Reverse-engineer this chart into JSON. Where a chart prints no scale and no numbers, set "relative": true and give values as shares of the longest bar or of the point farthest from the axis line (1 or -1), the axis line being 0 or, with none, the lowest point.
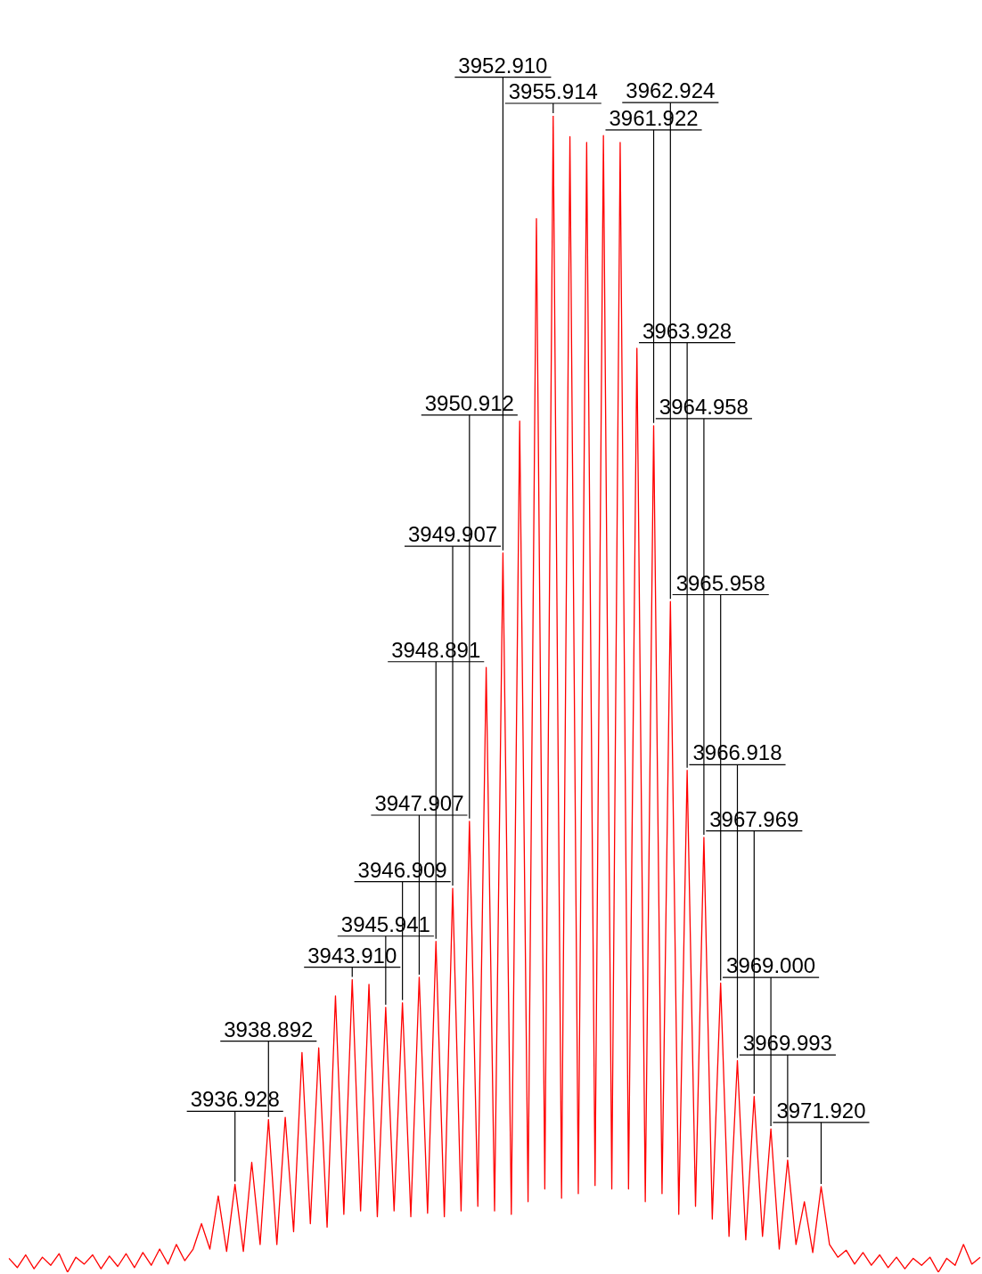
{
  "chart_data": {
    "type": "line",
    "color": "#ff0000",
    "relative": true,
    "marker": "none",
    "categories": [
      null,
      null,
      null,
      null,
      null,
      null,
      null,
      null,
      null,
      null,
      null,
      null,
      null,
      null,
      null,
      null,
      null,
      null,
      null,
      null,
      null,
      null,
      null,
      null,
      null,
      null,
      null,
      null,
      null,
      null,
      null,
      null,
      null,
      null,
      null,
      null,
      null,
      null,
      null,
      null,
      null,
      null,
      null,
      null,
      null,
      null,
      null,
      null,
      null,
      null,
      null,
      null,
      null,
      null,
      null,
      null,
      null,
      null,
      null,
      null,
      null,
      null,
      null,
      null,
      null,
      null,
      null,
      null,
      null,
      null,
      null,
      null,
      null,
      null,
      null,
      null,
      null,
      null,
      null,
      null,
      null,
      null,
      null,
      null,
      null,
      null,
      null,
      null,
      null,
      null,
      null,
      null,
      null,
      null,
      null,
      null,
      null,
      null,
      null,
      null,
      null,
      null,
      null,
      null,
      null,
      null,
      null,
      null,
      null,
      null,
      null,
      null,
      null,
      null,
      null,
      null,
      null
    ],
    "values": [
      0.012,
      0.004,
      0.015,
      0.003,
      0.013,
      0.006,
      0.016,
      0,
      0.013,
      0.007,
      0.015,
      0.003,
      0.014,
      0.005,
      0.016,
      0.004,
      0.017,
      0.006,
      0.02,
      0.007,
      0.024,
      0.01,
      0.02,
      0.042,
      0.02,
      0.066,
      0.018,
      0.076,
      0.018,
      0.095,
      0.024,
      0.132,
      0.024,
      0.134,
      0.035,
      0.19,
      0.042,
      0.194,
      0.039,
      0.239,
      0.05,
      0.253,
      0.053,
      0.249,
      0.048,
      0.229,
      0.053,
      0.233,
      0.048,
      0.255,
      0.051,
      0.286,
      0.048,
      0.332,
      0.053,
      0.39,
      0.057,
      0.523,
      0.053,
      0.622,
      0.05,
      0.736,
      0.061,
      0.911,
      0.072,
      1,
      0.064,
      0.982,
      0.068,
      0.977,
      0.075,
      0.983,
      0.072,
      0.977,
      0.072,
      0.799,
      0.061,
      0.732,
      0.068,
      0.58,
      0.05,
      0.434,
      0.057,
      0.376,
      0.046,
      0.25,
      0.031,
      0.183,
      0.028,
      0.152,
      0.031,
      0.124,
      0.02,
      0.097,
      0.024,
      0.061,
      0.017,
      0.074,
      0.024,
      0.013,
      0.019,
      0.007,
      0.017,
      0.006,
      0.015,
      0.004,
      0.013,
      0.003,
      0.012,
      0.006,
      0.013,
      0,
      0.012,
      0.006,
      0.024,
      0.007,
      0.013
    ],
    "annotations": [
      {
        "text": "3936.928",
        "y": 0.076
      },
      {
        "text": "3938.892",
        "y": 0.132
      },
      {
        "text": "3943.910",
        "y": 0.253
      },
      {
        "text": "3945.941",
        "y": 0.229
      },
      {
        "text": "3946.909",
        "y": 0.233
      },
      {
        "text": "3947.907",
        "y": 0.255
      },
      {
        "text": "3948.891",
        "y": 0.286
      },
      {
        "text": "3949.907",
        "y": 0.332
      },
      {
        "text": "3950.912",
        "y": 0.39
      },
      {
        "text": "3952.910",
        "y": 0.622
      },
      {
        "text": "3955.914",
        "y": 1
      },
      {
        "text": "3961.922",
        "y": 0.732
      },
      {
        "text": "3962.924",
        "y": 0.58
      },
      {
        "text": "3963.928",
        "y": 0.434
      },
      {
        "text": "3964.958",
        "y": 0.376
      },
      {
        "text": "3965.958",
        "y": 0.25
      },
      {
        "text": "3966.918",
        "y": 0.183
      },
      {
        "text": "3967.969",
        "y": 0.152
      },
      {
        "text": "3969.000",
        "y": 0.124
      },
      {
        "text": "3969.993",
        "y": 0.097
      },
      {
        "text": "3971.920",
        "y": 0.074
      }
    ]
  }
}
